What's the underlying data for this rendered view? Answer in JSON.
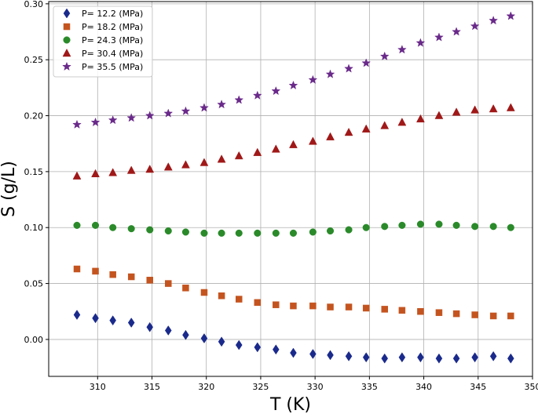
{
  "chart_data": {
    "type": "scatter",
    "title": "",
    "xlabel": "T (K)",
    "ylabel": "S (g/L)",
    "xlim": [
      305.5,
      350
    ],
    "ylim": [
      -0.033,
      0.302
    ],
    "xticks": [
      310,
      315,
      320,
      325,
      330,
      335,
      340,
      345,
      350
    ],
    "yticks": [
      0.0,
      0.05,
      0.1,
      0.15,
      0.2,
      0.25,
      0.3
    ],
    "xtick_labels": [
      "310",
      "315",
      "320",
      "325",
      "330",
      "335",
      "340",
      "345",
      "350"
    ],
    "ytick_labels": [
      "0.00",
      "0.05",
      "0.10",
      "0.15",
      "0.20",
      "0.25",
      "0.30"
    ],
    "grid": true,
    "legend_position": "top-left",
    "x": [
      308.1,
      309.8,
      311.4,
      313.1,
      314.8,
      316.5,
      318.1,
      319.8,
      321.4,
      323.0,
      324.7,
      326.4,
      328.0,
      329.8,
      331.4,
      333.1,
      334.7,
      336.4,
      338.0,
      339.7,
      341.4,
      343.0,
      344.7,
      346.4,
      348.0
    ],
    "series": [
      {
        "name": "P= 12.2 (MPa)",
        "marker": "diamond",
        "color": "#1a2a8c",
        "values": [
          0.022,
          0.019,
          0.017,
          0.015,
          0.011,
          0.008,
          0.004,
          0.001,
          -0.002,
          -0.005,
          -0.007,
          -0.009,
          -0.012,
          -0.013,
          -0.014,
          -0.015,
          -0.016,
          -0.017,
          -0.016,
          -0.016,
          -0.017,
          -0.017,
          -0.016,
          -0.015,
          -0.017
        ]
      },
      {
        "name": "P= 18.2 (MPa)",
        "marker": "square",
        "color": "#c4541f",
        "values": [
          0.063,
          0.061,
          0.058,
          0.056,
          0.053,
          0.05,
          0.046,
          0.042,
          0.039,
          0.036,
          0.033,
          0.031,
          0.03,
          0.03,
          0.029,
          0.029,
          0.028,
          0.027,
          0.026,
          0.025,
          0.024,
          0.023,
          0.022,
          0.021,
          0.021
        ]
      },
      {
        "name": "P= 24.3 (MPa)",
        "marker": "circle",
        "color": "#2a8a2a",
        "values": [
          0.102,
          0.102,
          0.1,
          0.099,
          0.098,
          0.097,
          0.096,
          0.095,
          0.095,
          0.095,
          0.095,
          0.095,
          0.095,
          0.096,
          0.097,
          0.098,
          0.1,
          0.101,
          0.102,
          0.103,
          0.103,
          0.102,
          0.101,
          0.101,
          0.1
        ]
      },
      {
        "name": "P= 30.4 (MPa)",
        "marker": "triangle",
        "color": "#a01818",
        "values": [
          0.146,
          0.148,
          0.149,
          0.151,
          0.152,
          0.154,
          0.156,
          0.158,
          0.161,
          0.164,
          0.167,
          0.17,
          0.174,
          0.177,
          0.181,
          0.185,
          0.188,
          0.191,
          0.194,
          0.197,
          0.2,
          0.203,
          0.205,
          0.206,
          0.207
        ]
      },
      {
        "name": "P= 35.5 (MPa)",
        "marker": "star",
        "color": "#6a2a8a",
        "values": [
          0.192,
          0.194,
          0.196,
          0.198,
          0.2,
          0.202,
          0.204,
          0.207,
          0.21,
          0.214,
          0.218,
          0.222,
          0.227,
          0.232,
          0.237,
          0.242,
          0.247,
          0.253,
          0.259,
          0.265,
          0.27,
          0.275,
          0.28,
          0.285,
          0.289
        ]
      }
    ]
  }
}
